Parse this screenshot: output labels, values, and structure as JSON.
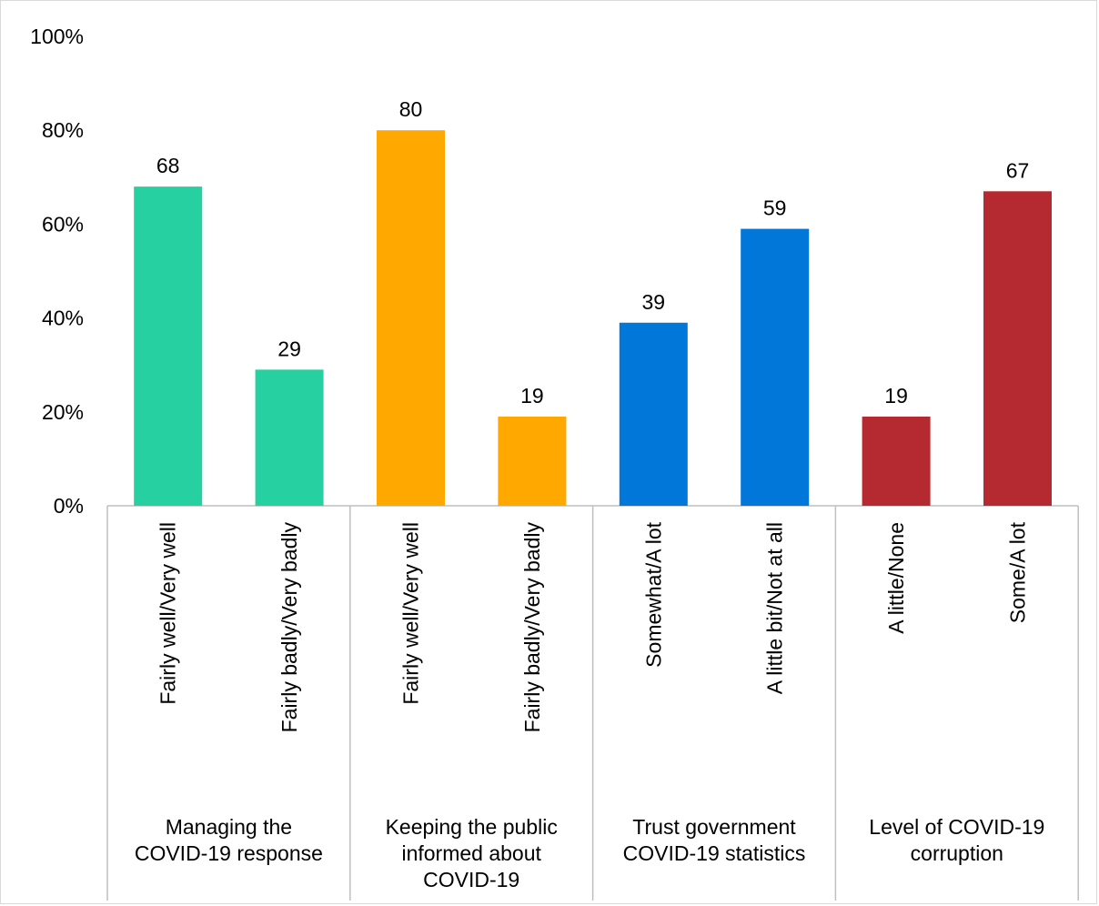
{
  "chart_data": {
    "type": "bar",
    "ylim": [
      0,
      100
    ],
    "yticks": [
      0,
      20,
      40,
      60,
      80,
      100
    ],
    "ytick_labels": [
      "0%",
      "20%",
      "40%",
      "60%",
      "80%",
      "100%"
    ],
    "grid": false,
    "legend": "none",
    "groups": [
      {
        "label": "Managing the COVID-19 response",
        "label_lines": [
          "Managing the",
          "COVID-19 response"
        ],
        "color": "#26d0a0",
        "bars": [
          {
            "category": "Fairly well/Very well",
            "value": 68,
            "value_label": "68"
          },
          {
            "category": "Fairly badly/Very badly",
            "value": 29,
            "value_label": "29"
          }
        ]
      },
      {
        "label": "Keeping the public informed about COVID-19",
        "label_lines": [
          "Keeping the public",
          "informed about",
          "COVID-19"
        ],
        "color": "#ffa800",
        "bars": [
          {
            "category": "Fairly well/Very well",
            "value": 80,
            "value_label": "80"
          },
          {
            "category": "Fairly badly/Very badly",
            "value": 19,
            "value_label": "19"
          }
        ]
      },
      {
        "label": "Trust government COVID-19 statistics",
        "label_lines": [
          "Trust government",
          "COVID-19 statistics"
        ],
        "color": "#0077d9",
        "bars": [
          {
            "category": "Somewhat/A lot",
            "value": 39,
            "value_label": "39"
          },
          {
            "category": "A little bit/Not at all",
            "value": 59,
            "value_label": "59"
          }
        ]
      },
      {
        "label": "Level of COVID-19 corruption",
        "label_lines": [
          "Level of COVID-19",
          "corruption"
        ],
        "color": "#b52a30",
        "bars": [
          {
            "category": "A little/None",
            "value": 19,
            "value_label": "19"
          },
          {
            "category": "Some/A lot",
            "value": 67,
            "value_label": "67"
          }
        ]
      }
    ]
  }
}
